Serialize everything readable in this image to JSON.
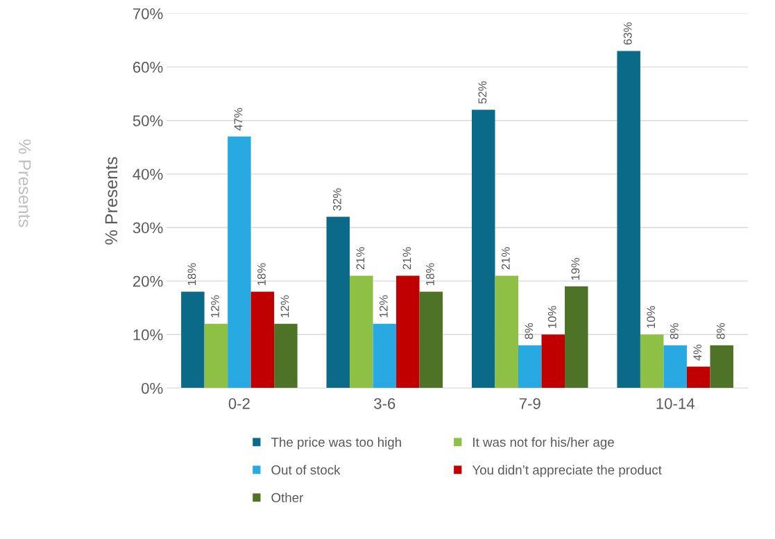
{
  "chart_data": {
    "type": "bar",
    "ylabel": "% Presents",
    "annotations": [
      "% Presents"
    ],
    "categories": [
      "0-2",
      "3-6",
      "7-9",
      "10-14"
    ],
    "series": [
      {
        "name": "The price was too high",
        "color": "#0b6a87",
        "values": [
          18,
          32,
          52,
          63
        ],
        "value_labels": [
          "18%",
          "32%",
          "52%",
          "63%"
        ]
      },
      {
        "name": "It was not for his/her age",
        "color": "#8dc044",
        "values": [
          12,
          21,
          21,
          10
        ],
        "value_labels": [
          "12%",
          "21%",
          "21%",
          "10%"
        ]
      },
      {
        "name": "Out of stock",
        "color": "#29a9e1",
        "values": [
          47,
          12,
          8,
          8
        ],
        "value_labels": [
          "47%",
          "12%",
          "8%",
          "8%"
        ]
      },
      {
        "name": "You didn’t appreciate the product",
        "color": "#c00000",
        "values": [
          18,
          21,
          10,
          4
        ],
        "value_labels": [
          "18%",
          "21%",
          "10%",
          "4%"
        ]
      },
      {
        "name": "Other",
        "color": "#4e7326",
        "values": [
          12,
          18,
          19,
          8
        ],
        "value_labels": [
          "12%",
          "18%",
          "19%",
          "8%"
        ]
      }
    ],
    "ylim": [
      0,
      70
    ],
    "yticks": [
      {
        "value": 0,
        "label": "0%"
      },
      {
        "value": 10,
        "label": "10%"
      },
      {
        "value": 20,
        "label": "20%"
      },
      {
        "value": 30,
        "label": "30%"
      },
      {
        "value": 40,
        "label": "40%"
      },
      {
        "value": 50,
        "label": "50%"
      },
      {
        "value": 60,
        "label": "60%"
      },
      {
        "value": 70,
        "label": "70%"
      }
    ],
    "grid": "y",
    "legend": "bottom"
  }
}
